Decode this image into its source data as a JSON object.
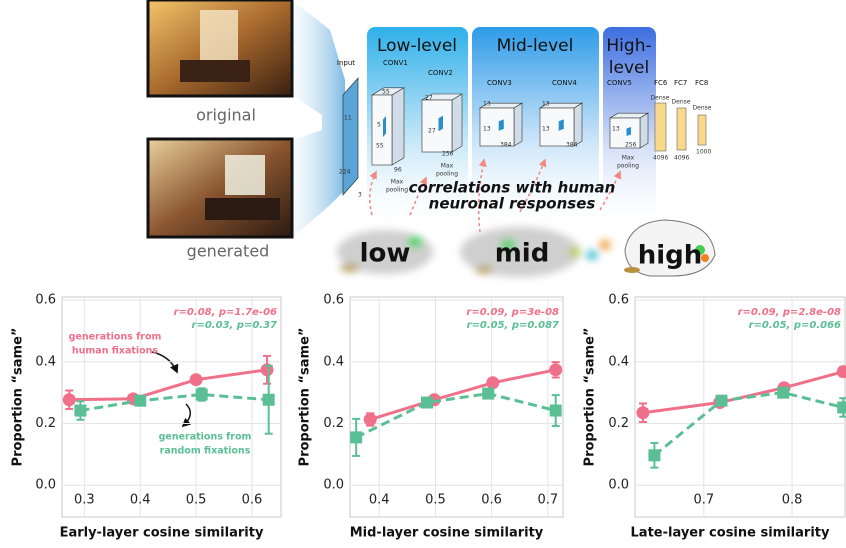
{
  "diagram": {
    "photo_labels": [
      "original",
      "generated"
    ],
    "input_label": "Input",
    "stages": [
      "Low-level",
      "Mid-level"
    ],
    "high_stage": [
      "High-",
      "level"
    ],
    "layers": [
      "CONV1",
      "CONV2",
      "CONV3",
      "CONV4",
      "CONV5",
      "FC6",
      "FC7",
      "FC8"
    ],
    "pooling": [
      [
        "Max",
        "pooling"
      ],
      [
        "Max",
        "pooling"
      ],
      [
        "Max",
        "pooling"
      ]
    ],
    "dense": [
      "Dense",
      "Dense",
      "Dense"
    ],
    "dims": [
      "11",
      "224",
      "3",
      "55",
      "5",
      "55",
      "96",
      "27",
      "27",
      "256",
      "13",
      "13",
      "384",
      "13",
      "13",
      "384",
      "13",
      "256",
      "4096",
      "4096",
      "1000"
    ],
    "correlation": [
      "correlations with human",
      "neuronal responses"
    ],
    "brain_labels": [
      "low",
      "mid",
      "high"
    ]
  },
  "chart_data": [
    {
      "type": "line",
      "xlabel": "Early-layer cosine similarity",
      "ylabel": "Proportion “same”",
      "xlim": [
        0.26,
        0.652
      ],
      "ylim": [
        -0.103,
        0.61
      ],
      "xticks": [
        0.3,
        0.4,
        0.5,
        0.6
      ],
      "yticks": [
        {
          "value": 0,
          "label": "0.0"
        },
        0.2,
        0.4,
        0.6
      ],
      "grid": true,
      "stats": [
        "r=0.08, p=1.7e-06",
        "r=0.03, p=0.37"
      ],
      "notes": [
        {
          "lines": [
            "generations from",
            "human fixations"
          ],
          "color": "#f0708a"
        },
        {
          "lines": [
            "generations from",
            "random fixations"
          ],
          "color": "#5bbf95"
        }
      ],
      "series": [
        {
          "color": "#f0708a",
          "linestyle": "solid",
          "marker": "circle",
          "x": [
            0.273,
            0.3875,
            0.5,
            0.627
          ],
          "values": [
            0.277,
            0.28,
            0.342,
            0.374
          ],
          "errors": [
            0.03,
            0.01,
            0.01,
            0.045
          ]
        },
        {
          "color": "#5bbf95",
          "linestyle": "dashed",
          "marker": "square",
          "x": [
            0.293,
            0.4,
            0.51,
            0.63
          ],
          "values": [
            0.242,
            0.274,
            0.294,
            0.277
          ],
          "errors": [
            0.03,
            0.015,
            0.02,
            0.11
          ]
        }
      ]
    },
    {
      "type": "line",
      "xlabel": "Mid-layer cosine similarity",
      "ylabel": "Proportion “same”",
      "xlim": [
        0.348,
        0.727
      ],
      "ylim": [
        -0.103,
        0.61
      ],
      "xticks": [
        0.4,
        0.5,
        0.6,
        0.7
      ],
      "yticks": [
        {
          "value": 0,
          "label": "0.0"
        },
        0.2,
        0.4,
        0.6
      ],
      "grid": true,
      "stats": [
        "r=0.09, p=3e-08",
        "r=0.05, p=0.087"
      ],
      "series": [
        {
          "color": "#f0708a",
          "linestyle": "solid",
          "marker": "circle",
          "x": [
            0.384,
            0.498,
            0.602,
            0.714
          ],
          "values": [
            0.213,
            0.277,
            0.332,
            0.374
          ],
          "errors": [
            0.02,
            0.01,
            0.01,
            0.025
          ]
        },
        {
          "color": "#5bbf95",
          "linestyle": "dashed",
          "marker": "square",
          "x": [
            0.359,
            0.485,
            0.594,
            0.714
          ],
          "values": [
            0.155,
            0.268,
            0.297,
            0.242
          ],
          "errors": [
            0.06,
            0.01,
            0.01,
            0.05
          ]
        }
      ]
    },
    {
      "type": "line",
      "xlabel": "Late-layer cosine similarity",
      "ylabel": "Proportion “same”",
      "xlim": [
        0.622,
        0.86
      ],
      "ylim": [
        -0.103,
        0.61
      ],
      "xticks": [
        0.7,
        0.8
      ],
      "yticks": [
        {
          "value": 0,
          "label": "0.0"
        },
        0.2,
        0.4,
        0.6
      ],
      "grid": true,
      "stats": [
        "r=0.09, p=2.8e-08",
        "r=0.05, p=0.066"
      ],
      "series": [
        {
          "color": "#f0708a",
          "linestyle": "solid",
          "marker": "circle",
          "x": [
            0.631,
            0.718,
            0.791,
            0.858
          ],
          "values": [
            0.235,
            0.268,
            0.316,
            0.368
          ],
          "errors": [
            0.03,
            0.01,
            0.01,
            0.015
          ]
        },
        {
          "color": "#5bbf95",
          "linestyle": "dashed",
          "marker": "square",
          "x": [
            0.644,
            0.72,
            0.79,
            0.858
          ],
          "values": [
            0.097,
            0.274,
            0.3,
            0.252
          ],
          "errors": [
            0.04,
            0.015,
            0.01,
            0.03
          ]
        }
      ]
    }
  ]
}
